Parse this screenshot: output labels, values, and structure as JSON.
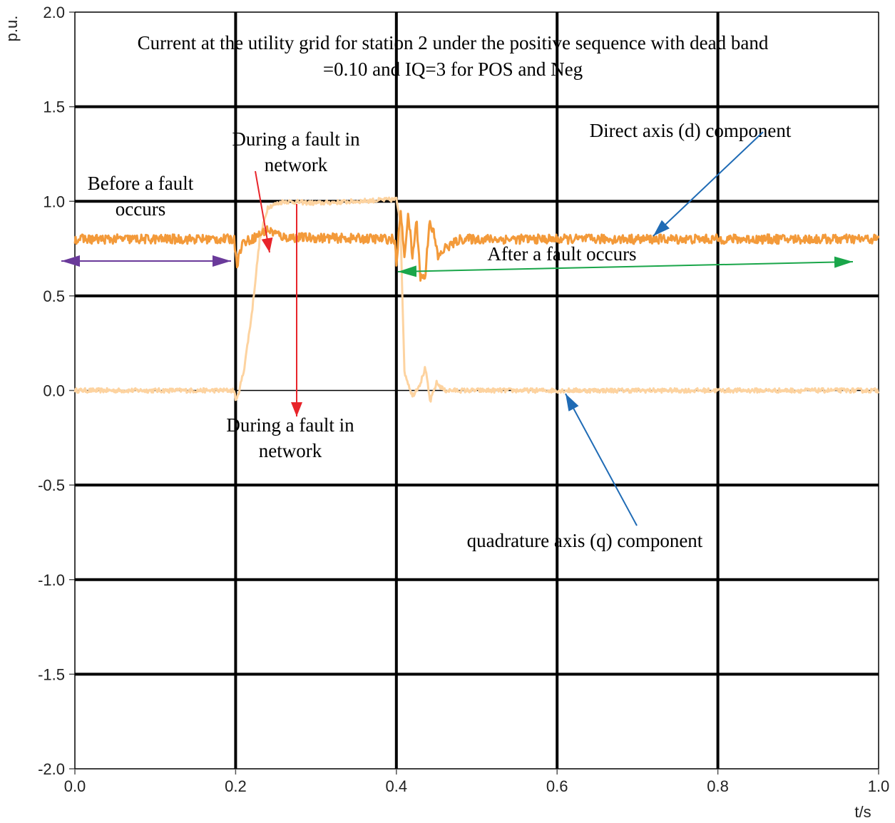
{
  "chart_data": {
    "type": "line",
    "title_lines": [
      "Current  at the utility grid for station 2 under the positive sequence with dead band",
      "=0.10 and IQ=3 for POS and Neg"
    ],
    "xlabel": "t/s",
    "ylabel": "p.u.",
    "xlim": [
      0.0,
      1.0
    ],
    "ylim": [
      -2.0,
      2.0
    ],
    "grid": true,
    "xticks": [
      "0.0",
      "0.2",
      "0.4",
      "0.6",
      "0.8",
      "1.0"
    ],
    "yticks": [
      "2.0",
      "1.5",
      "1.0",
      "0.5",
      "0.0",
      "-0.5",
      "-1.0",
      "-1.5",
      "-2.0"
    ],
    "series": [
      {
        "name": "Direct axis (d) component",
        "color": "#f39a3a",
        "noise": 0.025,
        "points": [
          [
            0,
            0.8
          ],
          [
            0.198,
            0.8
          ],
          [
            0.202,
            0.67
          ],
          [
            0.208,
            0.78
          ],
          [
            0.22,
            0.8
          ],
          [
            0.24,
            0.85
          ],
          [
            0.26,
            0.81
          ],
          [
            0.398,
            0.8
          ],
          [
            0.4,
            0.65
          ],
          [
            0.405,
            0.95
          ],
          [
            0.41,
            0.72
          ],
          [
            0.415,
            0.93
          ],
          [
            0.42,
            0.7
          ],
          [
            0.425,
            0.9
          ],
          [
            0.43,
            0.6
          ],
          [
            0.436,
            0.6
          ],
          [
            0.441,
            0.9
          ],
          [
            0.446,
            0.84
          ],
          [
            0.452,
            0.7
          ],
          [
            0.46,
            0.75
          ],
          [
            0.48,
            0.8
          ],
          [
            1.0,
            0.8
          ]
        ]
      },
      {
        "name": "quadrature axis (q) component",
        "color": "#fdd3a0",
        "noise": 0.012,
        "points": [
          [
            0,
            0.0
          ],
          [
            0.198,
            0.0
          ],
          [
            0.201,
            -0.06
          ],
          [
            0.21,
            0.1
          ],
          [
            0.22,
            0.4
          ],
          [
            0.23,
            0.8
          ],
          [
            0.24,
            0.97
          ],
          [
            0.26,
            1.0
          ],
          [
            0.3,
            0.99
          ],
          [
            0.4,
            1.01
          ],
          [
            0.405,
            0.9
          ],
          [
            0.41,
            0.1
          ],
          [
            0.42,
            -0.03
          ],
          [
            0.43,
            0.04
          ],
          [
            0.436,
            0.12
          ],
          [
            0.442,
            -0.06
          ],
          [
            0.45,
            0.04
          ],
          [
            0.46,
            0.0
          ],
          [
            1.0,
            0.0
          ]
        ]
      }
    ],
    "annotations": {
      "before": [
        "Before a fault",
        "occurs"
      ],
      "during_top": [
        "During a fault in",
        "network"
      ],
      "during_bottom": [
        "During a fault in",
        "network"
      ],
      "after": "After a fault occurs",
      "d_label": "Direct axis (d) component",
      "q_label": "quadrature axis (q) component"
    },
    "arrow_colors": {
      "before": "#6a3a9a",
      "during": "#e8242a",
      "after": "#1aa64a",
      "label": "#1f6bb5"
    }
  }
}
